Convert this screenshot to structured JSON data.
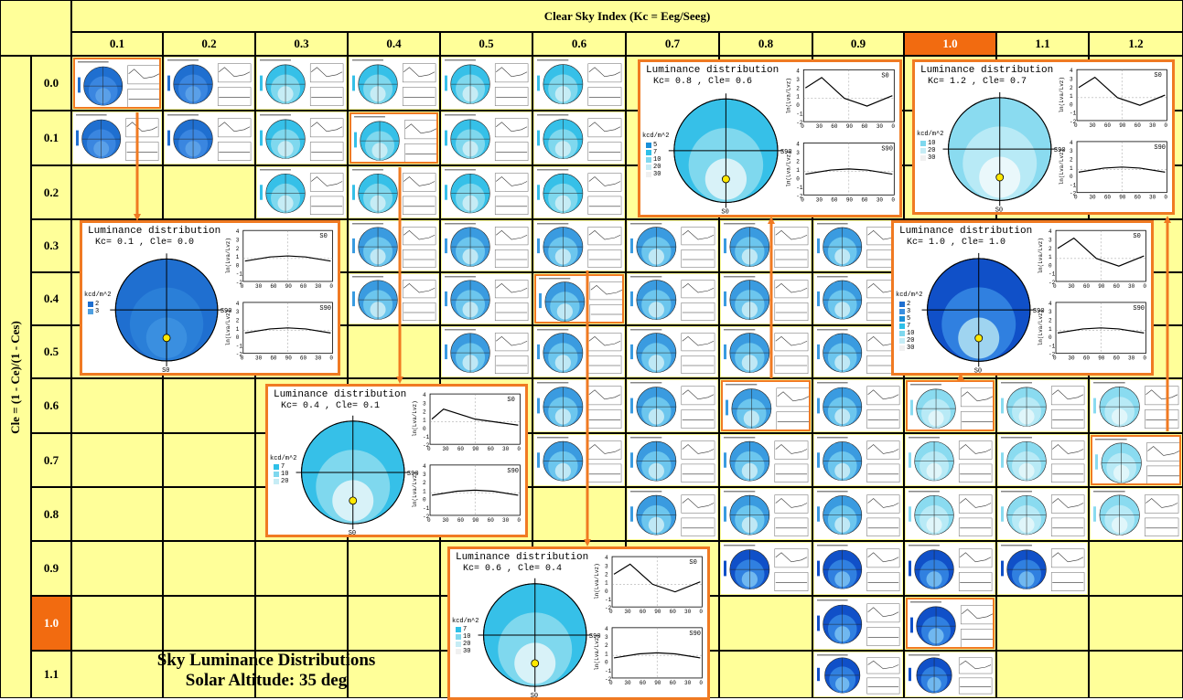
{
  "x_axis_title": "Clear Sky Index (Kc = Eeg/Seeg)",
  "y_axis_title": "Cle = (1 - Ce)/(1 - Ces)",
  "columns": [
    "0.1",
    "0.2",
    "0.3",
    "0.4",
    "0.5",
    "0.6",
    "0.7",
    "0.8",
    "0.9",
    "1.0",
    "1.1",
    "1.2"
  ],
  "rows": [
    "0.0",
    "0.1",
    "0.2",
    "0.3",
    "0.4",
    "0.5",
    "0.6",
    "0.7",
    "0.8",
    "0.9",
    "1.0",
    "1.1"
  ],
  "highlight_column": "1.0",
  "highlight_row": "1.0",
  "caption_line1": "Sky Luminance Distributions",
  "caption_line2": "Solar Altitude: 35 deg",
  "colors": {
    "header": "#ffff99",
    "highlight": "#f26b10",
    "frame": "#f07a22",
    "arrow": "#f07a22"
  },
  "thumbnail_cells": [
    [
      "0.1",
      "0.0"
    ],
    [
      "0.2",
      "0.0"
    ],
    [
      "0.3",
      "0.0"
    ],
    [
      "0.4",
      "0.0"
    ],
    [
      "0.5",
      "0.0"
    ],
    [
      "0.6",
      "0.0"
    ],
    [
      "0.1",
      "0.1"
    ],
    [
      "0.2",
      "0.1"
    ],
    [
      "0.3",
      "0.1"
    ],
    [
      "0.4",
      "0.1"
    ],
    [
      "0.5",
      "0.1"
    ],
    [
      "0.6",
      "0.1"
    ],
    [
      "0.3",
      "0.2"
    ],
    [
      "0.4",
      "0.2"
    ],
    [
      "0.5",
      "0.2"
    ],
    [
      "0.6",
      "0.2"
    ],
    [
      "0.4",
      "0.3"
    ],
    [
      "0.5",
      "0.3"
    ],
    [
      "0.6",
      "0.3"
    ],
    [
      "0.7",
      "0.3"
    ],
    [
      "0.8",
      "0.3"
    ],
    [
      "0.9",
      "0.3"
    ],
    [
      "0.4",
      "0.4"
    ],
    [
      "0.5",
      "0.4"
    ],
    [
      "0.6",
      "0.4"
    ],
    [
      "0.7",
      "0.4"
    ],
    [
      "0.8",
      "0.4"
    ],
    [
      "0.9",
      "0.4"
    ],
    [
      "0.5",
      "0.5"
    ],
    [
      "0.6",
      "0.5"
    ],
    [
      "0.7",
      "0.5"
    ],
    [
      "0.8",
      "0.5"
    ],
    [
      "0.9",
      "0.5"
    ],
    [
      "0.6",
      "0.6"
    ],
    [
      "0.7",
      "0.6"
    ],
    [
      "0.8",
      "0.6"
    ],
    [
      "0.9",
      "0.6"
    ],
    [
      "1.0",
      "0.6"
    ],
    [
      "1.1",
      "0.6"
    ],
    [
      "1.2",
      "0.6"
    ],
    [
      "0.6",
      "0.7"
    ],
    [
      "0.7",
      "0.7"
    ],
    [
      "0.8",
      "0.7"
    ],
    [
      "0.9",
      "0.7"
    ],
    [
      "1.0",
      "0.7"
    ],
    [
      "1.1",
      "0.7"
    ],
    [
      "1.2",
      "0.7"
    ],
    [
      "0.7",
      "0.8"
    ],
    [
      "0.8",
      "0.8"
    ],
    [
      "0.9",
      "0.8"
    ],
    [
      "1.0",
      "0.8"
    ],
    [
      "1.1",
      "0.8"
    ],
    [
      "1.2",
      "0.8"
    ],
    [
      "0.8",
      "0.9"
    ],
    [
      "0.9",
      "0.9"
    ],
    [
      "1.0",
      "0.9"
    ],
    [
      "1.1",
      "0.9"
    ],
    [
      "0.9",
      "1.0"
    ],
    [
      "1.0",
      "1.0"
    ],
    [
      "0.9",
      "1.1"
    ],
    [
      "1.0",
      "1.1"
    ]
  ],
  "selected_cells": [
    [
      "0.1",
      "0.0"
    ],
    [
      "0.4",
      "0.1"
    ],
    [
      "0.6",
      "0.4"
    ],
    [
      "0.8",
      "0.6"
    ],
    [
      "1.0",
      "1.0"
    ],
    [
      "1.2",
      "0.7"
    ],
    [
      "1.0",
      "0.6"
    ]
  ],
  "panels": [
    {
      "id": "p1",
      "title": "Luminance distribution",
      "subtitle": "Kc= 0.1 , Cle= 0.0",
      "unit": "kcd/m^2",
      "legend": [
        "2",
        "3"
      ],
      "legend_colors": [
        "#1f6fd0",
        "#4f9fe0"
      ],
      "sky": "dark",
      "curve_top": "flat",
      "curve_bottom": "flat",
      "label_top": "S0",
      "label_bottom": "S90",
      "sun_label": "S0",
      "side_label": "S90"
    },
    {
      "id": "p2",
      "title": "Luminance distribution",
      "subtitle": "Kc= 0.4 , Cle= 0.1",
      "unit": "kcd/m^2",
      "legend": [
        "7",
        "10",
        "20"
      ],
      "legend_colors": [
        "#2ec0e8",
        "#7fd8ee",
        "#c6ecf5"
      ],
      "sky": "light",
      "curve_top": "decay",
      "curve_bottom": "flat",
      "label_top": "S0",
      "label_bottom": "S90",
      "sun_label": "S0",
      "side_label": "S90"
    },
    {
      "id": "p3",
      "title": "Luminance distribution",
      "subtitle": "Kc= 0.6 , Cle= 0.4",
      "unit": "kcd/m^2",
      "legend": [
        "7",
        "10",
        "20",
        "30"
      ],
      "legend_colors": [
        "#2ec0e8",
        "#7fd8ee",
        "#c6ecf5",
        "#f0f0f0"
      ],
      "sky": "light",
      "curve_top": "dip",
      "curve_bottom": "flat",
      "label_top": "S0",
      "label_bottom": "S90",
      "sun_label": "S0",
      "side_label": "S90"
    },
    {
      "id": "p4",
      "title": "Luminance distribution",
      "subtitle": "Kc= 0.8 , Cle= 0.6",
      "unit": "kcd/m^2",
      "legend": [
        "5",
        "7",
        "10",
        "20",
        "30"
      ],
      "legend_colors": [
        "#1a8fd8",
        "#2ec0e8",
        "#7fd8ee",
        "#c6ecf5",
        "#f0f0f0"
      ],
      "sky": "light",
      "curve_top": "dip",
      "curve_bottom": "flat",
      "label_top": "S0",
      "label_bottom": "S90",
      "sun_label": "S0",
      "side_label": "S90"
    },
    {
      "id": "p5",
      "title": "Luminance distribution",
      "subtitle": "Kc= 1.2 , Cle= 0.7",
      "unit": "kcd/m^2",
      "legend": [
        "10",
        "20",
        "30"
      ],
      "legend_colors": [
        "#7fd8ee",
        "#c6ecf5",
        "#f0f0f0"
      ],
      "sky": "pale",
      "curve_top": "dip",
      "curve_bottom": "flat",
      "label_top": "S0",
      "label_bottom": "S90",
      "sun_label": "S0",
      "side_label": "S90"
    },
    {
      "id": "p6",
      "title": "Luminance distribution",
      "subtitle": "Kc= 1.0 , Cle= 1.0",
      "unit": "kcd/m^2",
      "legend": [
        "2",
        "3",
        "5",
        "7",
        "10",
        "20",
        "30"
      ],
      "legend_colors": [
        "#1f6fd0",
        "#3a8fe0",
        "#1a8fd8",
        "#2ec0e8",
        "#7fd8ee",
        "#c6ecf5",
        "#f0f0f0"
      ],
      "sky": "blue",
      "curve_top": "dip",
      "curve_bottom": "flat",
      "label_top": "S0",
      "label_bottom": "S90",
      "sun_label": "S0",
      "side_label": "S90"
    }
  ],
  "axis_ticks_x": [
    "0",
    "30",
    "60",
    "90",
    "60",
    "30",
    "0"
  ],
  "axis_ticks_y": [
    "4",
    "3",
    "2",
    "1",
    "0",
    "-1",
    "-2"
  ],
  "ylabel_plot": "ln(Lva/Lvz)"
}
